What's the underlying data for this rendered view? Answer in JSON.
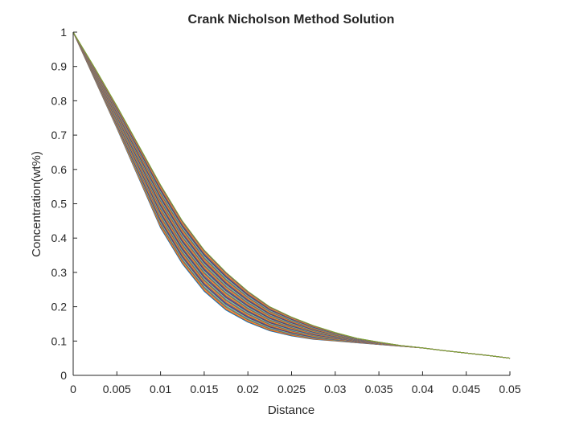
{
  "chart_data": {
    "type": "line",
    "title": "Crank Nicholson Method Solution",
    "xlabel": "Distance",
    "ylabel": "Concentration(wt%)",
    "xlim": [
      0,
      0.05
    ],
    "ylim": [
      0,
      1
    ],
    "xticks": [
      "0",
      "0.005",
      "0.01",
      "0.015",
      "0.02",
      "0.025",
      "0.03",
      "0.035",
      "0.04",
      "0.045",
      "0.05"
    ],
    "yticks": [
      "0",
      "0.1",
      "0.2",
      "0.3",
      "0.4",
      "0.5",
      "0.6",
      "0.7",
      "0.8",
      "0.9",
      "1"
    ],
    "grid": false,
    "legend": false,
    "x": [
      0,
      0.0025,
      0.005,
      0.0075,
      0.01,
      0.0125,
      0.015,
      0.0175,
      0.02,
      0.0225,
      0.025,
      0.0275,
      0.03,
      0.0325,
      0.035,
      0.0375,
      0.04,
      0.0425,
      0.045,
      0.0475,
      0.05
    ],
    "series_envelope": {
      "count": 40,
      "lowest": [
        1.0,
        0.86,
        0.72,
        0.575,
        0.43,
        0.325,
        0.245,
        0.19,
        0.155,
        0.13,
        0.115,
        0.105,
        0.1,
        0.095,
        0.09,
        0.085,
        0.08,
        0.072,
        0.065,
        0.058,
        0.05
      ],
      "highest": [
        1.0,
        0.895,
        0.785,
        0.67,
        0.555,
        0.45,
        0.365,
        0.3,
        0.245,
        0.2,
        0.17,
        0.145,
        0.125,
        0.108,
        0.097,
        0.087,
        0.08,
        0.072,
        0.065,
        0.058,
        0.05
      ]
    },
    "colors": [
      "#0072BD",
      "#D95319",
      "#EDB120",
      "#7E2F8E",
      "#77AC30",
      "#4DBEEE",
      "#A2142F"
    ]
  }
}
